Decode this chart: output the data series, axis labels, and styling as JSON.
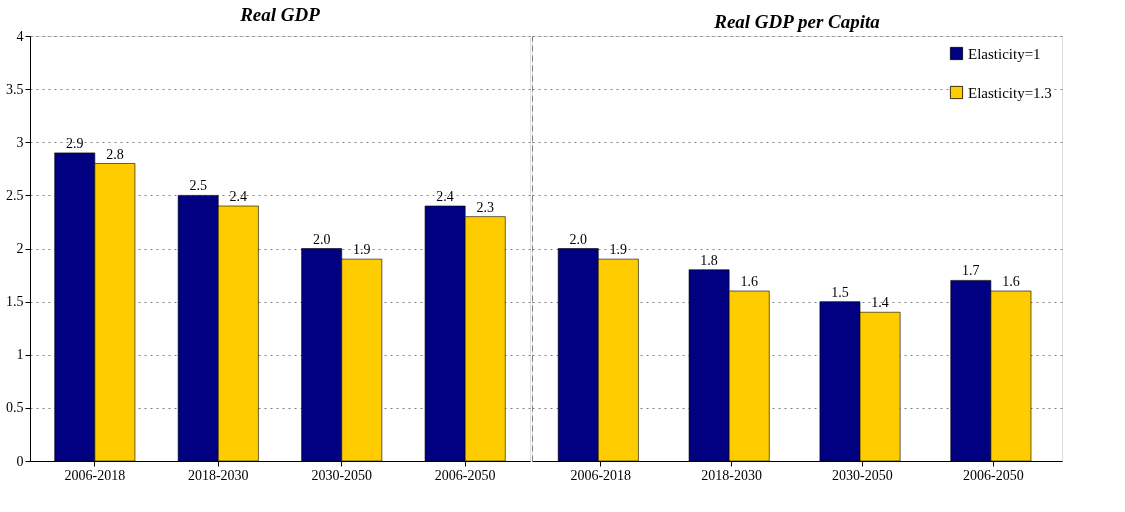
{
  "chart_data": [
    {
      "type": "bar",
      "title": "Real GDP",
      "categories": [
        "2006-2018",
        "2018-2030",
        "2030-2050",
        "2006-2050"
      ],
      "ylim": [
        0,
        4
      ],
      "yticks": [
        0,
        0.5,
        1,
        1.5,
        2,
        2.5,
        3,
        3.5,
        4
      ],
      "grid": "y",
      "legend": false,
      "series": [
        {
          "color": "#000080",
          "values": [
            2.9,
            2.5,
            2.0,
            2.4
          ],
          "value_labels": [
            "2.9",
            "2.5",
            "2.0",
            "2.4"
          ]
        },
        {
          "color": "#ffcc00",
          "values": [
            2.8,
            2.4,
            1.9,
            2.3
          ],
          "value_labels": [
            "2.8",
            "2.4",
            "1.9",
            "2.3"
          ]
        }
      ]
    },
    {
      "type": "bar",
      "title": "Real GDP per Capita",
      "categories": [
        "2006-2018",
        "2018-2030",
        "2030-2050",
        "2006-2050"
      ],
      "ylim": [
        0,
        4
      ],
      "yticks": [
        0,
        0.5,
        1,
        1.5,
        2,
        2.5,
        3,
        3.5,
        4
      ],
      "grid": "y",
      "legend": "top right",
      "tick_labels": "x",
      "series": [
        {
          "name": "Elasticity=1",
          "color": "#000080",
          "values": [
            2.0,
            1.8,
            1.5,
            1.7
          ],
          "value_labels": [
            "2.0",
            "1.8",
            "1.5",
            "1.7"
          ]
        },
        {
          "name": "Elasticity=1.3",
          "color": "#ffcc00",
          "values": [
            1.9,
            1.6,
            1.4,
            1.6
          ],
          "value_labels": [
            "1.9",
            "1.6",
            "1.4",
            "1.6"
          ]
        }
      ]
    }
  ]
}
